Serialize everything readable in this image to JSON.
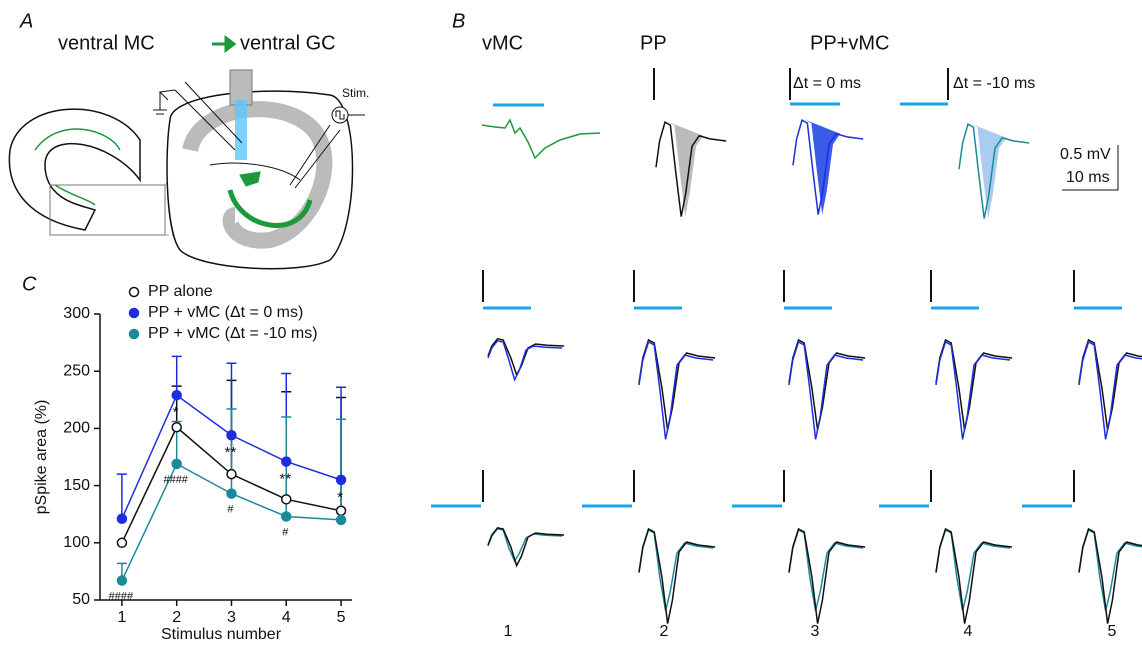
{
  "panels": {
    "A": {
      "label": "A",
      "from": "ventral MC",
      "to": "ventral GC",
      "stim": "Stim."
    },
    "B": {
      "label": "B",
      "columns": [
        "vMC",
        "PP",
        "PP+vMC"
      ],
      "dt_labels": [
        "Δt = 0 ms",
        "Δt = -10 ms"
      ],
      "scale_bar": {
        "y": "0.5 mV",
        "x": "10 ms"
      },
      "stimulus_numbers": [
        "1",
        "2",
        "3",
        "4",
        "5"
      ]
    }
  },
  "chart_data": {
    "type": "line",
    "panel_label": "C",
    "x_label": "Stimulus number",
    "y_label": "pSpike area (%)",
    "x": [
      1,
      2,
      3,
      4,
      5
    ],
    "xlim": [
      0.6,
      5.2
    ],
    "xticks": [
      1,
      2,
      3,
      4,
      5
    ],
    "ylim": [
      50,
      300
    ],
    "yticks": [
      50,
      100,
      150,
      200,
      250,
      300
    ],
    "series": [
      {
        "name": "PP alone",
        "color": "#111111",
        "marker_fill": "#ffffff",
        "values": [
          100,
          201,
          160,
          138,
          128
        ],
        "errors": [
          0,
          36,
          82,
          94,
          99
        ]
      },
      {
        "name": "PP + vMC (Δt = 0 ms)",
        "color": "#1f2de0",
        "marker_fill": "#1f2de0",
        "values": [
          121,
          229,
          194,
          171,
          155
        ],
        "errors": [
          39,
          34,
          63,
          77,
          81
        ]
      },
      {
        "name": "PP + vMC (Δt = -10 ms)",
        "color": "#1a8a9a",
        "marker_fill": "#1a8a9a",
        "values": [
          67,
          169,
          143,
          123,
          120
        ],
        "errors": [
          15,
          37,
          74,
          87,
          88
        ]
      }
    ],
    "annotations": [
      {
        "text": "*",
        "x": 2,
        "series": 1
      },
      {
        "text": "**",
        "x": 3,
        "series": 1
      },
      {
        "text": "**",
        "x": 4,
        "series": 1
      },
      {
        "text": "*",
        "x": 5,
        "series": 1
      },
      {
        "text": "####",
        "x": 1,
        "series": 2
      },
      {
        "text": "####",
        "x": 2,
        "series": 2
      },
      {
        "text": "#",
        "x": 3,
        "series": 2
      },
      {
        "text": "#",
        "x": 4,
        "series": 2
      }
    ]
  }
}
